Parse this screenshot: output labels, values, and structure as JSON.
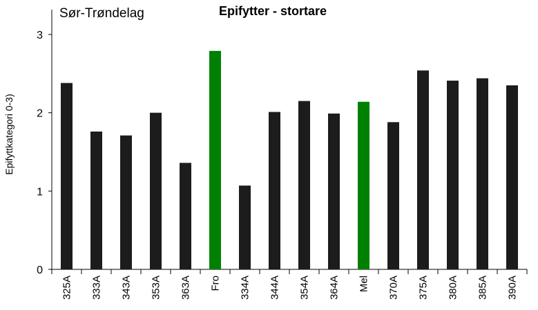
{
  "chart_data": {
    "type": "bar",
    "title": "Epifytter - stortare",
    "region_label": "Sør-Trøndelag",
    "ylabel": "Epifyttkategori  0-3)",
    "xlabel": "",
    "ylim": [
      0,
      3
    ],
    "yticks": [
      "0",
      "1",
      "2",
      "3"
    ],
    "categories": [
      "325A",
      "333A",
      "343A",
      "353A",
      "363A",
      "Fro",
      "334A",
      "344A",
      "354A",
      "364A",
      "Mel",
      "370A",
      "375A",
      "380A",
      "385A",
      "390A"
    ],
    "values": [
      2.38,
      1.76,
      1.71,
      2.0,
      1.36,
      2.79,
      1.07,
      2.01,
      2.15,
      1.99,
      2.14,
      1.88,
      2.54,
      2.41,
      2.44,
      2.35
    ],
    "highlight_categories": [
      "Fro",
      "Mel"
    ],
    "colors": {
      "default": "#1c1c1c",
      "highlight": "#008000"
    },
    "grid": false,
    "legend": "none"
  }
}
